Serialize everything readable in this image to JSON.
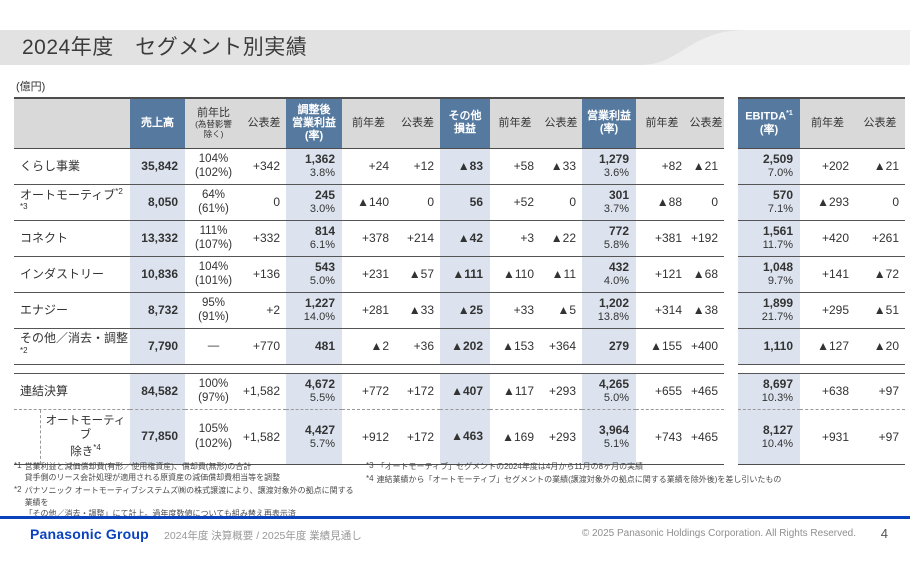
{
  "slide": {
    "title": "2024年度　セグメント別実績",
    "unit_label": "(億円)",
    "page_number": "4"
  },
  "colors": {
    "header_blue": "#55799f",
    "band_blue": "#dce3ee",
    "header_gray": "#d9d9d9",
    "panasonic_blue": "#0a41bd",
    "title_band_gray": "#e2e2e2"
  },
  "table": {
    "headers": {
      "sales": "売上高",
      "yoy": "前年比",
      "yoy_sub": "(為替影響\n除く)",
      "vs_guidance": "公表差",
      "adj_op": "調整後\n営業利益\n(率)",
      "vs_prev_year": "前年差",
      "other_pl": "その他\n損益",
      "op": "営業利益\n(率)",
      "ebitda": "EBITDA",
      "ebitda_sup": "*1",
      "ebitda_rate": "(率)"
    },
    "sections": [
      {
        "rows": [
          {
            "label": "くらし事業",
            "sup": "",
            "cells": [
              "35,842",
              "104%\n(102%)",
              "+342",
              "1,362\n3.8%",
              "+24",
              "+12",
              "▲83",
              "+58",
              "▲33",
              "1,279\n3.6%",
              "+82",
              "▲21",
              "2,509\n7.0%",
              "+202",
              "▲21"
            ]
          },
          {
            "label": "オートモーティブ",
            "sup": "*2 *3",
            "cells": [
              "8,050",
              "64%\n(61%)",
              "0",
              "245\n3.0%",
              "▲140",
              "0",
              "56",
              "+52",
              "0",
              "301\n3.7%",
              "▲88",
              "0",
              "570\n7.1%",
              "▲293",
              "0"
            ]
          },
          {
            "label": "コネクト",
            "sup": "",
            "cells": [
              "13,332",
              "111%\n(107%)",
              "+332",
              "814\n6.1%",
              "+378",
              "+214",
              "▲42",
              "+3",
              "▲22",
              "772\n5.8%",
              "+381",
              "+192",
              "1,561\n11.7%",
              "+420",
              "+261"
            ]
          },
          {
            "label": "インダストリー",
            "sup": "",
            "cells": [
              "10,836",
              "104%\n(101%)",
              "+136",
              "543\n5.0%",
              "+231",
              "▲57",
              "▲111",
              "▲110",
              "▲11",
              "432\n4.0%",
              "+121",
              "▲68",
              "1,048\n9.7%",
              "+141",
              "▲72"
            ]
          },
          {
            "label": "エナジー",
            "sup": "",
            "cells": [
              "8,732",
              "95%\n(91%)",
              "+2",
              "1,227\n14.0%",
              "+281",
              "▲33",
              "▲25",
              "+33",
              "▲5",
              "1,202\n13.8%",
              "+314",
              "▲38",
              "1,899\n21.7%",
              "+295",
              "▲51"
            ]
          },
          {
            "label": "その他／消去・調整",
            "sup": "*2",
            "cells": [
              "7,790",
              "—",
              "+770",
              "481",
              "▲2",
              "+36",
              "▲202",
              "▲153",
              "+364",
              "279",
              "▲155",
              "+400",
              "1,110",
              "▲127",
              "▲20"
            ]
          }
        ]
      },
      {
        "rows": [
          {
            "label": "連結決算",
            "sup": "",
            "cells": [
              "84,582",
              "100%\n(97%)",
              "+1,582",
              "4,672\n5.5%",
              "+772",
              "+172",
              "▲407",
              "▲117",
              "+293",
              "4,265\n5.0%",
              "+655",
              "+465",
              "8,697\n10.3%",
              "+638",
              "+97"
            ]
          },
          {
            "label": "オートモーティブ\n除き",
            "sup": "*4",
            "style": "excl",
            "cells": [
              "77,850",
              "105%\n(102%)",
              "+1,582",
              "4,427\n5.7%",
              "+912",
              "+172",
              "▲463",
              "▲169",
              "+293",
              "3,964\n5.1%",
              "+743",
              "+465",
              "8,127\n10.4%",
              "+931",
              "+97"
            ]
          }
        ]
      }
    ]
  },
  "footnotes": {
    "left": [
      {
        "mark": "*1",
        "text": "営業利益と減価償却費(有形／使用権資産)、償却費(無形)の合計\n貸手側のリース会計処理が適用される原資産の減価償却費相当等を調整"
      },
      {
        "mark": "*2",
        "text": "パナソニック オートモーティブシステムズ㈱の株式譲渡により、譲渡対象外の拠点に関する業績を\n「その他／消去・調整」にて計上。過年度数値についても組み替え再表示済"
      }
    ],
    "right": [
      {
        "mark": "*3",
        "text": "「オートモーティブ」セグメントの2024年度は4月から11月の8ヶ月の実績"
      },
      {
        "mark": "*4",
        "text": "連結業績から「オートモーティブ」セグメントの業績(譲渡対象外の拠点に関する業績を除外後)を差し引いたもの"
      }
    ]
  },
  "footer": {
    "logo": "Panasonic Group",
    "deck_title": "2024年度 決算概要 / 2025年度 業績見通し",
    "copyright": "© 2025 Panasonic Holdings Corporation. All Rights Reserved."
  }
}
